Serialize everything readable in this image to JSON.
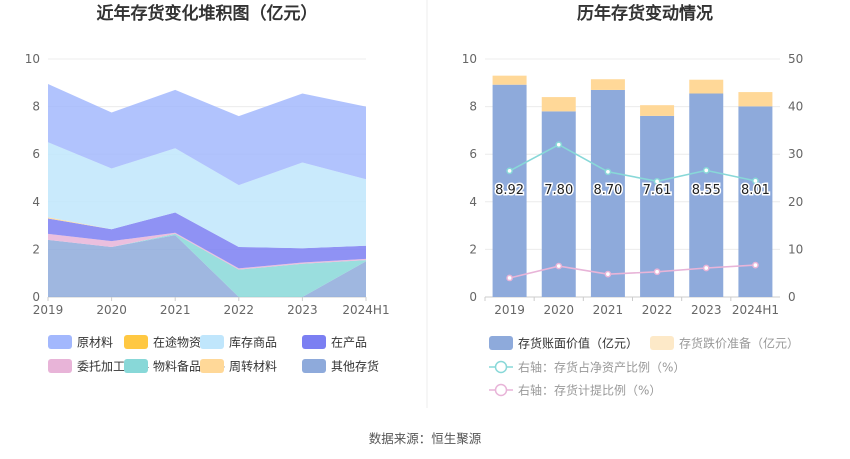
{
  "left_chart": {
    "title": "近年存货变化堆积图（亿元）",
    "chart_data": {
      "type": "area",
      "stacked": true,
      "categories": [
        "2019",
        "2020",
        "2021",
        "2022",
        "2023",
        "2024H1"
      ],
      "ylim": [
        0,
        10
      ],
      "yticks": [
        "0",
        "2",
        "4",
        "6",
        "8",
        "10"
      ],
      "grid": true,
      "legend_position": "bottom",
      "series": [
        {
          "name": "其他存货",
          "color": "#8eaadb",
          "values": [
            2.4,
            2.1,
            2.6,
            0.0,
            0.0,
            1.5
          ]
        },
        {
          "name": "物料备品备件",
          "color": "#88d8d8",
          "values": [
            0.0,
            0.0,
            0.05,
            1.15,
            1.4,
            0.05
          ]
        },
        {
          "name": "委托加工材料",
          "color": "#e8b4d8",
          "values": [
            0.25,
            0.25,
            0.05,
            0.05,
            0.05,
            0.05
          ]
        },
        {
          "name": "在产品",
          "color": "#7b7ff2",
          "values": [
            0.65,
            0.5,
            0.85,
            0.9,
            0.6,
            0.55
          ]
        },
        {
          "name": "周转材料",
          "color": "#ffd898",
          "values": [
            0.05,
            0.0,
            0.0,
            0.0,
            0.0,
            0.0
          ]
        },
        {
          "name": "库存商品",
          "color": "#c0e6fc",
          "values": [
            3.15,
            2.55,
            2.7,
            2.6,
            3.6,
            2.8
          ]
        },
        {
          "name": "在途物资",
          "color": "#ffc842",
          "values": [
            0.0,
            0.0,
            0.0,
            0.0,
            0.0,
            0.0
          ]
        },
        {
          "name": "原材料",
          "color": "#a3b8fd",
          "values": [
            2.45,
            2.35,
            2.45,
            2.9,
            2.9,
            3.05
          ]
        }
      ],
      "legend_order": [
        "原材料",
        "在途物资",
        "库存商品",
        "在产品",
        "委托加工材料",
        "物料备品备件",
        "周转材料",
        "其他存货"
      ]
    }
  },
  "right_chart": {
    "title": "历年存货变动情况",
    "chart_data": {
      "type": "bar",
      "categories": [
        "2019",
        "2020",
        "2021",
        "2022",
        "2023",
        "2024H1"
      ],
      "ylim": [
        0,
        10
      ],
      "yticks": [
        "0",
        "2",
        "4",
        "6",
        "8",
        "10"
      ],
      "y2lim": [
        0,
        50
      ],
      "y2ticks": [
        "0",
        "10",
        "20",
        "30",
        "40",
        "50"
      ],
      "grid": true,
      "legend_position": "bottom",
      "bars": [
        {
          "name": "存货账面价值（亿元）",
          "color": "#8eaadb",
          "values": [
            8.92,
            7.8,
            8.7,
            7.61,
            8.55,
            8.01
          ],
          "labels": [
            "8.92",
            "7.80",
            "8.70",
            "7.61",
            "8.55",
            "8.01"
          ]
        },
        {
          "name": "存货跌价准备（亿元）",
          "color": "#ffd898",
          "legend_color": "#fde9c8",
          "values": [
            0.38,
            0.6,
            0.45,
            0.45,
            0.58,
            0.6
          ]
        }
      ],
      "lines": [
        {
          "name": "右轴：存货占净资产比例（%）",
          "color": "#88d8d8",
          "axis": "right",
          "values": [
            26.5,
            32.0,
            26.3,
            24.3,
            26.6,
            24.4
          ]
        },
        {
          "name": "右轴：存货计提比例（%）",
          "color": "#e8b4d8",
          "axis": "right",
          "values": [
            4.0,
            6.5,
            4.8,
            5.3,
            6.1,
            6.7
          ]
        }
      ]
    }
  },
  "source_text": "数据来源：恒生聚源"
}
